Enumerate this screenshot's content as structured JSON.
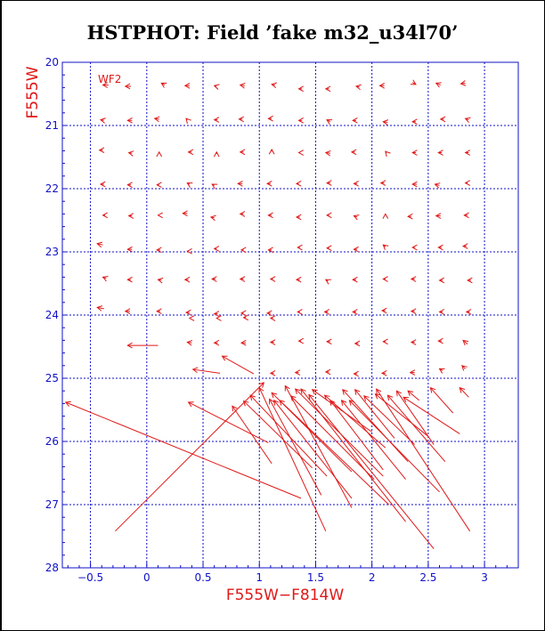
{
  "title": "HSTPHOT: Field ’fake m32_u34l70’",
  "chart_data": {
    "type": "vector",
    "panel_label": "WF2",
    "xlabel": "F555W−F814W",
    "ylabel": "F555W",
    "xlim": [
      -0.75,
      3.3
    ],
    "ylim": [
      28,
      20
    ],
    "y_inverted": true,
    "x_ticks": [
      -0.5,
      0,
      0.5,
      1,
      1.5,
      2,
      2.5,
      3
    ],
    "x_tick_labels": [
      "−0.5",
      "0",
      "0.5",
      "1",
      "1.5",
      "2",
      "2.5",
      "3"
    ],
    "y_ticks": [
      20,
      21,
      22,
      23,
      24,
      25,
      26,
      27,
      28
    ],
    "grid": true,
    "colors": {
      "axes": "#1010c8",
      "grid": "#1010c8",
      "vectors": "#e01818",
      "title": "#000000"
    },
    "vectors": [
      {
        "x0": -0.34,
        "y0": 20.36,
        "x1": -0.39,
        "y1": 20.36
      },
      {
        "x0": -0.14,
        "y0": 20.38,
        "x1": -0.19,
        "y1": 20.38
      },
      {
        "x0": 0.16,
        "y0": 20.36,
        "x1": 0.13,
        "y1": 20.33
      },
      {
        "x0": 0.38,
        "y0": 20.37,
        "x1": 0.34,
        "y1": 20.37
      },
      {
        "x0": 0.62,
        "y0": 20.38,
        "x1": 0.6,
        "y1": 20.37
      },
      {
        "x0": 0.87,
        "y0": 20.37,
        "x1": 0.83,
        "y1": 20.36
      },
      {
        "x0": 1.14,
        "y0": 20.36,
        "x1": 1.11,
        "y1": 20.35
      },
      {
        "x0": 1.38,
        "y0": 20.42,
        "x1": 1.35,
        "y1": 20.42
      },
      {
        "x0": 1.62,
        "y0": 20.42,
        "x1": 1.59,
        "y1": 20.42
      },
      {
        "x0": 1.89,
        "y0": 20.39,
        "x1": 1.86,
        "y1": 20.38
      },
      {
        "x0": 2.11,
        "y0": 20.37,
        "x1": 2.07,
        "y1": 20.37
      },
      {
        "x0": 2.36,
        "y0": 20.32,
        "x1": 2.39,
        "y1": 20.35
      },
      {
        "x0": 2.61,
        "y0": 20.36,
        "x1": 2.57,
        "y1": 20.33
      },
      {
        "x0": 2.83,
        "y0": 20.33,
        "x1": 2.79,
        "y1": 20.34
      },
      {
        "x0": -0.38,
        "y0": 20.92,
        "x1": -0.41,
        "y1": 20.91
      },
      {
        "x0": -0.13,
        "y0": 20.92,
        "x1": -0.17,
        "y1": 20.92
      },
      {
        "x0": 0.11,
        "y0": 20.9,
        "x1": 0.07,
        "y1": 20.89
      },
      {
        "x0": 0.36,
        "y0": 20.91,
        "x1": 0.35,
        "y1": 20.89
      },
      {
        "x0": 0.63,
        "y0": 20.91,
        "x1": 0.6,
        "y1": 20.91
      },
      {
        "x0": 0.85,
        "y0": 20.9,
        "x1": 0.82,
        "y1": 20.9
      },
      {
        "x0": 1.11,
        "y0": 20.89,
        "x1": 1.08,
        "y1": 20.89
      },
      {
        "x0": 1.38,
        "y0": 20.92,
        "x1": 1.35,
        "y1": 20.92
      },
      {
        "x0": 1.63,
        "y0": 20.94,
        "x1": 1.6,
        "y1": 20.91
      },
      {
        "x0": 1.86,
        "y0": 20.92,
        "x1": 1.83,
        "y1": 20.92
      },
      {
        "x0": 2.14,
        "y0": 20.95,
        "x1": 2.1,
        "y1": 20.94
      },
      {
        "x0": 2.39,
        "y0": 20.94,
        "x1": 2.36,
        "y1": 20.94
      },
      {
        "x0": 2.64,
        "y0": 20.9,
        "x1": 2.61,
        "y1": 20.9
      },
      {
        "x0": 2.86,
        "y0": 20.91,
        "x1": 2.83,
        "y1": 20.89
      },
      {
        "x0": -0.39,
        "y0": 21.39,
        "x1": -0.42,
        "y1": 21.39
      },
      {
        "x0": -0.13,
        "y0": 21.44,
        "x1": -0.16,
        "y1": 21.43
      },
      {
        "x0": 0.11,
        "y0": 21.44,
        "x1": 0.11,
        "y1": 21.42
      },
      {
        "x0": 0.4,
        "y0": 21.42,
        "x1": 0.37,
        "y1": 21.42
      },
      {
        "x0": 0.62,
        "y0": 21.45,
        "x1": 0.62,
        "y1": 21.42
      },
      {
        "x0": 0.86,
        "y0": 21.42,
        "x1": 0.83,
        "y1": 21.42
      },
      {
        "x0": 1.11,
        "y0": 21.41,
        "x1": 1.11,
        "y1": 21.38
      },
      {
        "x0": 1.36,
        "y0": 21.43,
        "x1": 1.35,
        "y1": 21.43
      },
      {
        "x0": 1.63,
        "y0": 21.44,
        "x1": 1.59,
        "y1": 21.43
      },
      {
        "x0": 1.85,
        "y0": 21.42,
        "x1": 1.82,
        "y1": 21.42
      },
      {
        "x0": 2.13,
        "y0": 21.43,
        "x1": 2.12,
        "y1": 21.41
      },
      {
        "x0": 2.39,
        "y0": 21.43,
        "x1": 2.36,
        "y1": 21.43
      },
      {
        "x0": 2.62,
        "y0": 21.43,
        "x1": 2.59,
        "y1": 21.43
      },
      {
        "x0": 2.86,
        "y0": 21.43,
        "x1": 2.83,
        "y1": 21.43
      },
      {
        "x0": -0.38,
        "y0": 21.93,
        "x1": -0.41,
        "y1": 21.93
      },
      {
        "x0": -0.14,
        "y0": 21.94,
        "x1": -0.17,
        "y1": 21.94
      },
      {
        "x0": 0.11,
        "y0": 21.94,
        "x1": 0.09,
        "y1": 21.94
      },
      {
        "x0": 0.38,
        "y0": 21.93,
        "x1": 0.36,
        "y1": 21.91
      },
      {
        "x0": 0.6,
        "y0": 21.95,
        "x1": 0.58,
        "y1": 21.93
      },
      {
        "x0": 0.85,
        "y0": 21.92,
        "x1": 0.81,
        "y1": 21.92
      },
      {
        "x0": 1.1,
        "y0": 21.92,
        "x1": 1.07,
        "y1": 21.92
      },
      {
        "x0": 1.35,
        "y0": 21.92,
        "x1": 1.33,
        "y1": 21.92
      },
      {
        "x0": 1.63,
        "y0": 21.91,
        "x1": 1.6,
        "y1": 21.91
      },
      {
        "x0": 1.87,
        "y0": 21.92,
        "x1": 1.84,
        "y1": 21.92
      },
      {
        "x0": 2.11,
        "y0": 21.91,
        "x1": 2.08,
        "y1": 21.91
      },
      {
        "x0": 2.4,
        "y0": 21.93,
        "x1": 2.36,
        "y1": 21.93
      },
      {
        "x0": 2.6,
        "y0": 21.95,
        "x1": 2.56,
        "y1": 21.93
      },
      {
        "x0": 2.85,
        "y0": 21.91,
        "x1": 2.83,
        "y1": 21.91
      },
      {
        "x0": -0.37,
        "y0": 22.42,
        "x1": -0.39,
        "y1": 22.42
      },
      {
        "x0": -0.13,
        "y0": 22.43,
        "x1": -0.16,
        "y1": 22.43
      },
      {
        "x0": 0.1,
        "y0": 22.42,
        "x1": 0.1,
        "y1": 22.42
      },
      {
        "x0": 0.36,
        "y0": 22.39,
        "x1": 0.32,
        "y1": 22.39
      },
      {
        "x0": 0.6,
        "y0": 22.46,
        "x1": 0.57,
        "y1": 22.45
      },
      {
        "x0": 0.86,
        "y0": 22.4,
        "x1": 0.83,
        "y1": 22.4
      },
      {
        "x0": 1.11,
        "y0": 22.42,
        "x1": 1.08,
        "y1": 22.42
      },
      {
        "x0": 1.36,
        "y0": 22.45,
        "x1": 1.33,
        "y1": 22.45
      },
      {
        "x0": 1.62,
        "y0": 22.42,
        "x1": 1.6,
        "y1": 22.42
      },
      {
        "x0": 1.87,
        "y0": 22.45,
        "x1": 1.84,
        "y1": 22.43
      },
      {
        "x0": 2.12,
        "y0": 22.42,
        "x1": 2.12,
        "y1": 22.4
      },
      {
        "x0": 2.35,
        "y0": 22.44,
        "x1": 2.32,
        "y1": 22.44
      },
      {
        "x0": 2.61,
        "y0": 22.43,
        "x1": 2.57,
        "y1": 22.43
      },
      {
        "x0": 2.85,
        "y0": 22.42,
        "x1": 2.82,
        "y1": 22.42
      },
      {
        "x0": -0.39,
        "y0": 22.89,
        "x1": -0.44,
        "y1": 22.87
      },
      {
        "x0": -0.13,
        "y0": 22.96,
        "x1": -0.17,
        "y1": 22.96
      },
      {
        "x0": 0.12,
        "y0": 22.97,
        "x1": 0.09,
        "y1": 22.97
      },
      {
        "x0": 0.37,
        "y0": 22.99,
        "x1": 0.36,
        "y1": 22.99
      },
      {
        "x0": 0.62,
        "y0": 22.95,
        "x1": 0.6,
        "y1": 22.95
      },
      {
        "x0": 0.86,
        "y0": 22.97,
        "x1": 0.84,
        "y1": 22.97
      },
      {
        "x0": 1.11,
        "y0": 22.97,
        "x1": 1.08,
        "y1": 22.97
      },
      {
        "x0": 1.36,
        "y0": 22.93,
        "x1": 1.34,
        "y1": 22.93
      },
      {
        "x0": 1.62,
        "y0": 22.94,
        "x1": 1.6,
        "y1": 22.94
      },
      {
        "x0": 1.87,
        "y0": 22.96,
        "x1": 1.84,
        "y1": 22.96
      },
      {
        "x0": 2.12,
        "y0": 22.92,
        "x1": 2.1,
        "y1": 22.89
      },
      {
        "x0": 2.38,
        "y0": 22.93,
        "x1": 2.36,
        "y1": 22.93
      },
      {
        "x0": 2.62,
        "y0": 22.93,
        "x1": 2.59,
        "y1": 22.93
      },
      {
        "x0": 2.84,
        "y0": 22.91,
        "x1": 2.81,
        "y1": 22.91
      },
      {
        "x0": -0.36,
        "y0": 23.42,
        "x1": -0.39,
        "y1": 23.4
      },
      {
        "x0": -0.14,
        "y0": 23.44,
        "x1": -0.17,
        "y1": 23.44
      },
      {
        "x0": 0.13,
        "y0": 23.45,
        "x1": 0.1,
        "y1": 23.44
      },
      {
        "x0": 0.37,
        "y0": 23.44,
        "x1": 0.34,
        "y1": 23.44
      },
      {
        "x0": 0.61,
        "y0": 23.43,
        "x1": 0.58,
        "y1": 23.43
      },
      {
        "x0": 0.86,
        "y0": 23.43,
        "x1": 0.83,
        "y1": 23.43
      },
      {
        "x0": 1.12,
        "y0": 23.43,
        "x1": 1.1,
        "y1": 23.43
      },
      {
        "x0": 1.36,
        "y0": 23.44,
        "x1": 1.33,
        "y1": 23.44
      },
      {
        "x0": 1.61,
        "y0": 23.46,
        "x1": 1.59,
        "y1": 23.44
      },
      {
        "x0": 1.86,
        "y0": 23.44,
        "x1": 1.83,
        "y1": 23.44
      },
      {
        "x0": 2.12,
        "y0": 23.43,
        "x1": 2.1,
        "y1": 23.43
      },
      {
        "x0": 2.38,
        "y0": 23.43,
        "x1": 2.35,
        "y1": 23.43
      },
      {
        "x0": 2.63,
        "y0": 23.45,
        "x1": 2.6,
        "y1": 23.45
      },
      {
        "x0": 2.88,
        "y0": 23.45,
        "x1": 2.85,
        "y1": 23.45
      },
      {
        "x0": -0.38,
        "y0": 23.9,
        "x1": -0.44,
        "y1": 23.88
      },
      {
        "x0": -0.15,
        "y0": 23.94,
        "x1": -0.19,
        "y1": 23.94
      },
      {
        "x0": 0.12,
        "y0": 23.94,
        "x1": 0.09,
        "y1": 23.94
      },
      {
        "x0": 0.38,
        "y0": 23.96,
        "x1": 0.35,
        "y1": 23.96
      },
      {
        "x0": 0.63,
        "y0": 23.98,
        "x1": 0.6,
        "y1": 23.98
      },
      {
        "x0": 0.86,
        "y0": 23.97,
        "x1": 0.84,
        "y1": 23.97
      },
      {
        "x0": 1.1,
        "y0": 23.97,
        "x1": 1.07,
        "y1": 23.97
      },
      {
        "x0": 1.36,
        "y0": 23.95,
        "x1": 1.34,
        "y1": 23.95
      },
      {
        "x0": 1.61,
        "y0": 23.95,
        "x1": 1.58,
        "y1": 23.95
      },
      {
        "x0": 1.86,
        "y0": 23.95,
        "x1": 1.83,
        "y1": 23.95
      },
      {
        "x0": 2.12,
        "y0": 23.93,
        "x1": 2.09,
        "y1": 23.93
      },
      {
        "x0": 2.38,
        "y0": 23.94,
        "x1": 2.35,
        "y1": 23.94
      },
      {
        "x0": 2.63,
        "y0": 23.95,
        "x1": 2.6,
        "y1": 23.95
      },
      {
        "x0": 2.87,
        "y0": 23.95,
        "x1": 2.84,
        "y1": 23.95
      },
      {
        "x0": 0.38,
        "y0": 24.05,
        "x1": 0.38,
        "y1": 24.05
      },
      {
        "x0": 0.62,
        "y0": 24.05,
        "x1": 0.62,
        "y1": 24.05
      },
      {
        "x0": 0.88,
        "y0": 24.04,
        "x1": 0.86,
        "y1": 24.04
      },
      {
        "x0": 1.12,
        "y0": 24.05,
        "x1": 1.1,
        "y1": 24.05
      },
      {
        "x0": 0.1,
        "y0": 24.48,
        "x1": -0.17,
        "y1": 24.48
      },
      {
        "x0": 0.4,
        "y0": 24.44,
        "x1": 0.36,
        "y1": 24.43
      },
      {
        "x0": 0.63,
        "y0": 24.44,
        "x1": 0.6,
        "y1": 24.44
      },
      {
        "x0": 0.88,
        "y0": 24.44,
        "x1": 0.84,
        "y1": 24.44
      },
      {
        "x0": 1.13,
        "y0": 24.43,
        "x1": 1.1,
        "y1": 24.43
      },
      {
        "x0": 1.37,
        "y0": 24.41,
        "x1": 1.35,
        "y1": 24.41
      },
      {
        "x0": 1.63,
        "y0": 24.42,
        "x1": 1.6,
        "y1": 24.42
      },
      {
        "x0": 1.88,
        "y0": 24.45,
        "x1": 1.85,
        "y1": 24.45
      },
      {
        "x0": 2.12,
        "y0": 24.42,
        "x1": 2.1,
        "y1": 24.42
      },
      {
        "x0": 2.38,
        "y0": 24.43,
        "x1": 2.35,
        "y1": 24.43
      },
      {
        "x0": 2.62,
        "y0": 24.41,
        "x1": 2.59,
        "y1": 24.41
      },
      {
        "x0": 2.85,
        "y0": 24.46,
        "x1": 2.81,
        "y1": 24.4
      },
      {
        "x0": 0.65,
        "y0": 24.92,
        "x1": 0.41,
        "y1": 24.86
      },
      {
        "x0": 0.95,
        "y0": 24.93,
        "x1": 0.67,
        "y1": 24.65
      },
      {
        "x0": 1.13,
        "y0": 24.92,
        "x1": 1.1,
        "y1": 24.92
      },
      {
        "x0": 1.35,
        "y0": 24.91,
        "x1": 1.32,
        "y1": 24.91
      },
      {
        "x0": 1.62,
        "y0": 24.9,
        "x1": 1.59,
        "y1": 24.9
      },
      {
        "x0": 1.87,
        "y0": 24.93,
        "x1": 1.84,
        "y1": 24.93
      },
      {
        "x0": 2.12,
        "y0": 24.92,
        "x1": 2.09,
        "y1": 24.92
      },
      {
        "x0": 2.38,
        "y0": 24.91,
        "x1": 2.34,
        "y1": 24.91
      },
      {
        "x0": 2.63,
        "y0": 24.88,
        "x1": 2.6,
        "y1": 24.85
      },
      {
        "x0": 2.83,
        "y0": 24.85,
        "x1": 2.8,
        "y1": 24.8
      },
      {
        "x0": 1.37,
        "y0": 26.9,
        "x1": -0.72,
        "y1": 25.38
      },
      {
        "x0": -0.28,
        "y0": 27.42,
        "x1": 1.04,
        "y1": 25.07
      },
      {
        "x0": 1.08,
        "y0": 26.02,
        "x1": 0.37,
        "y1": 25.38
      },
      {
        "x0": 1.11,
        "y0": 26.35,
        "x1": 0.76,
        "y1": 25.44
      },
      {
        "x0": 1.47,
        "y0": 26.42,
        "x1": 0.86,
        "y1": 25.36
      },
      {
        "x0": 1.6,
        "y0": 26.55,
        "x1": 0.92,
        "y1": 25.27
      },
      {
        "x0": 1.59,
        "y0": 27.42,
        "x1": 1.0,
        "y1": 25.15
      },
      {
        "x0": 1.55,
        "y0": 26.85,
        "x1": 1.09,
        "y1": 25.33
      },
      {
        "x0": 1.82,
        "y0": 26.48,
        "x1": 1.11,
        "y1": 25.23
      },
      {
        "x0": 1.82,
        "y0": 26.9,
        "x1": 1.13,
        "y1": 25.35
      },
      {
        "x0": 2.15,
        "y0": 27.0,
        "x1": 1.18,
        "y1": 25.35
      },
      {
        "x0": 1.82,
        "y0": 27.05,
        "x1": 1.23,
        "y1": 25.12
      },
      {
        "x0": 2.02,
        "y0": 26.6,
        "x1": 1.28,
        "y1": 25.28
      },
      {
        "x0": 2.1,
        "y0": 26.55,
        "x1": 1.32,
        "y1": 25.17
      },
      {
        "x0": 2.3,
        "y0": 27.27,
        "x1": 1.37,
        "y1": 25.17
      },
      {
        "x0": 2.55,
        "y0": 27.7,
        "x1": 1.44,
        "y1": 25.26
      },
      {
        "x0": 2.0,
        "y0": 25.85,
        "x1": 1.47,
        "y1": 25.18
      },
      {
        "x0": 2.12,
        "y0": 26.1,
        "x1": 1.58,
        "y1": 25.27
      },
      {
        "x0": 2.1,
        "y0": 26.45,
        "x1": 1.63,
        "y1": 25.35
      },
      {
        "x0": 2.3,
        "y0": 26.6,
        "x1": 1.73,
        "y1": 25.35
      },
      {
        "x0": 2.32,
        "y0": 26.32,
        "x1": 1.74,
        "y1": 25.18
      },
      {
        "x0": 2.6,
        "y0": 26.8,
        "x1": 1.8,
        "y1": 25.35
      },
      {
        "x0": 2.2,
        "y0": 25.95,
        "x1": 1.85,
        "y1": 25.18
      },
      {
        "x0": 2.38,
        "y0": 26.05,
        "x1": 1.93,
        "y1": 25.28
      },
      {
        "x0": 2.5,
        "y0": 25.92,
        "x1": 2.03,
        "y1": 25.25
      },
      {
        "x0": 2.87,
        "y0": 27.42,
        "x1": 2.04,
        "y1": 25.17
      },
      {
        "x0": 2.65,
        "y0": 26.32,
        "x1": 2.14,
        "y1": 25.27
      },
      {
        "x0": 2.55,
        "y0": 26.05,
        "x1": 2.22,
        "y1": 25.2
      },
      {
        "x0": 2.78,
        "y0": 25.88,
        "x1": 2.28,
        "y1": 25.3
      },
      {
        "x0": 2.42,
        "y0": 25.35,
        "x1": 2.32,
        "y1": 25.2
      },
      {
        "x0": 2.72,
        "y0": 25.55,
        "x1": 2.52,
        "y1": 25.15
      },
      {
        "x0": 2.86,
        "y0": 25.3,
        "x1": 2.78,
        "y1": 25.15
      }
    ]
  }
}
